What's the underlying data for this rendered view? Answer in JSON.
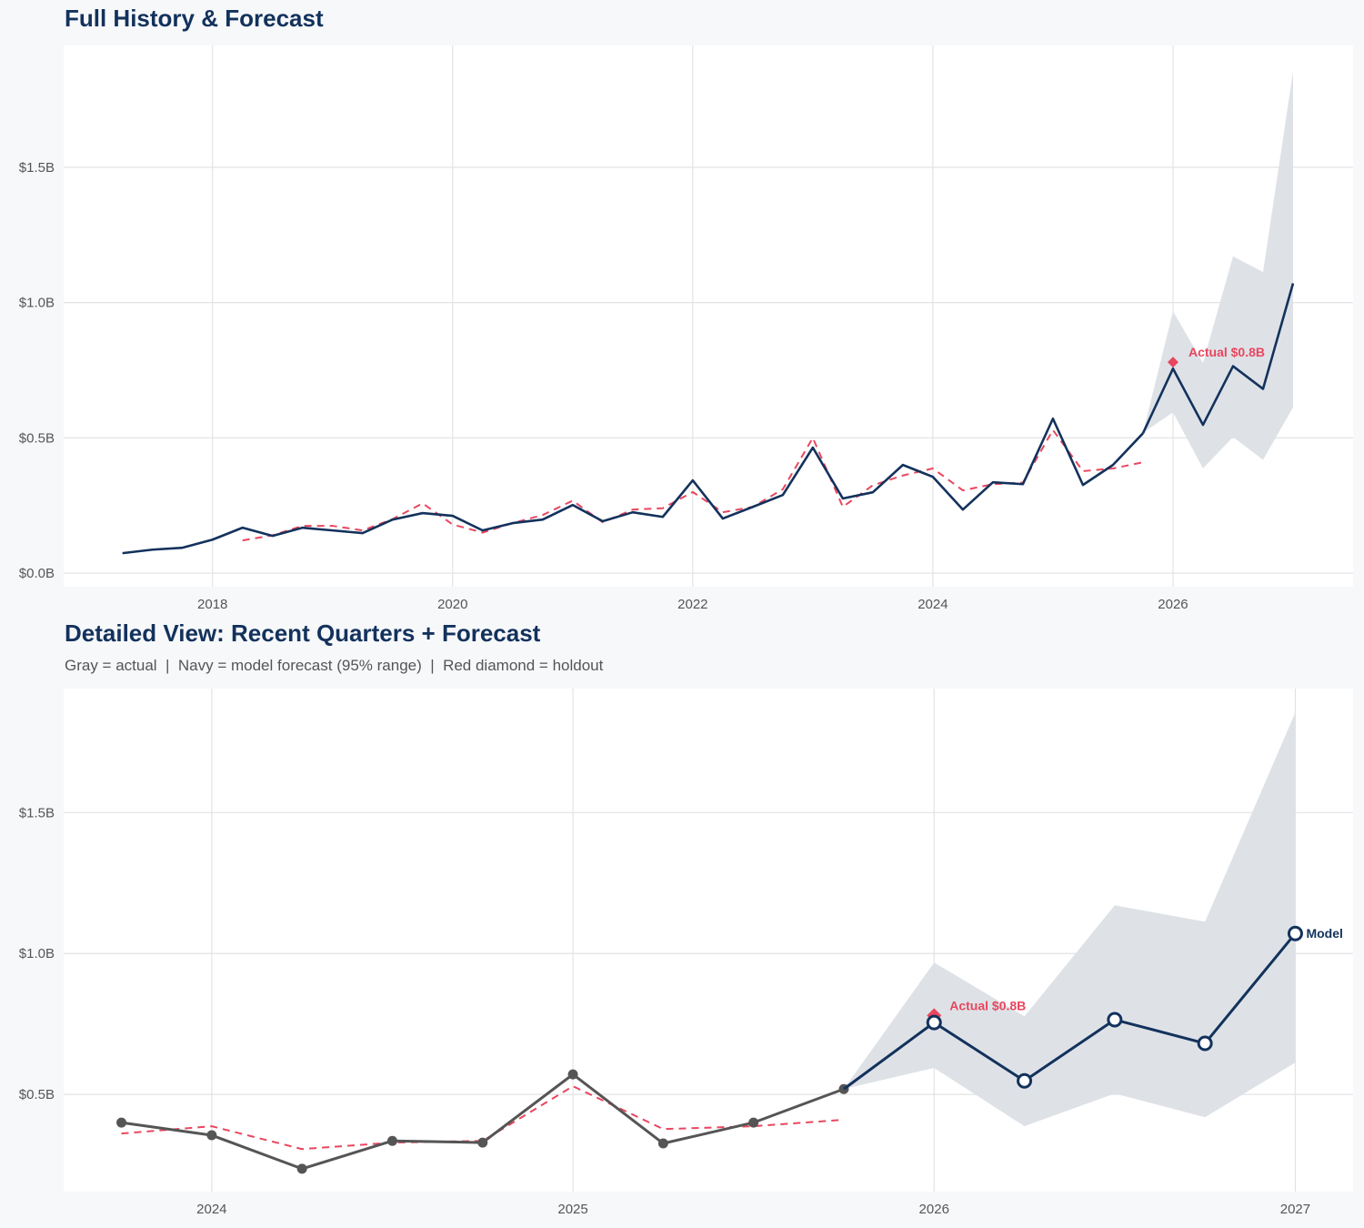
{
  "colors": {
    "background": "#f7f8fa",
    "panel": "#ffffff",
    "grid": "#e3e3e5",
    "navy": "#13325c",
    "red": "#e8475f",
    "gray": "#555555",
    "band": "#dce0e6"
  },
  "chart_data": [
    {
      "type": "line",
      "title": "Full History & Forecast",
      "xlim": [
        2016.76,
        2027.5
      ],
      "ylim": [
        -0.05,
        1.95
      ],
      "grid": true,
      "x_ticks": [
        2018,
        2020,
        2022,
        2024,
        2026
      ],
      "x_tick_labels": [
        "2018",
        "2020",
        "2022",
        "2024",
        "2026"
      ],
      "y_ticks": [
        0,
        0.5,
        1.0,
        1.5
      ],
      "y_tick_labels": [
        "$0.0B",
        "$0.5B",
        "$1.0B",
        "$1.5B"
      ],
      "series": [
        {
          "role": "actual",
          "color": "#13325c",
          "x": [
            2017.25,
            2017.5,
            2017.75,
            2018,
            2018.25,
            2018.5,
            2018.75,
            2019,
            2019.25,
            2019.5,
            2019.75,
            2020,
            2020.25,
            2020.5,
            2020.75,
            2021,
            2021.25,
            2021.5,
            2021.75,
            2022,
            2022.25,
            2022.5,
            2022.75,
            2023,
            2023.25,
            2023.5,
            2023.75,
            2024,
            2024.25,
            2024.5,
            2024.75,
            2025,
            2025.25,
            2025.5,
            2025.75
          ],
          "y": [
            0.074,
            0.087,
            0.094,
            0.124,
            0.168,
            0.138,
            0.168,
            0.158,
            0.148,
            0.198,
            0.222,
            0.212,
            0.158,
            0.185,
            0.198,
            0.252,
            0.192,
            0.225,
            0.208,
            0.343,
            0.202,
            0.245,
            0.289,
            0.464,
            0.276,
            0.299,
            0.4,
            0.356,
            0.235,
            0.336,
            0.329,
            0.571,
            0.326,
            0.4,
            0.517
          ]
        },
        {
          "role": "forecast",
          "color": "#13325c",
          "x": [
            2025.75,
            2026,
            2026.25,
            2026.5,
            2026.75,
            2027
          ],
          "y": [
            0.517,
            0.756,
            0.548,
            0.765,
            0.681,
            1.071
          ]
        },
        {
          "role": "fitted",
          "color": "#e8475f",
          "dashed": true,
          "x": [
            2018.25,
            2018.5,
            2018.75,
            2019,
            2019.25,
            2019.5,
            2019.75,
            2020,
            2020.25,
            2020.5,
            2020.75,
            2021,
            2021.25,
            2021.5,
            2021.75,
            2022,
            2022.25,
            2022.5,
            2022.75,
            2023,
            2023.25,
            2023.5,
            2023.75,
            2024,
            2024.25,
            2024.5,
            2024.75,
            2025,
            2025.25,
            2025.5,
            2025.75
          ],
          "y": [
            0.121,
            0.14,
            0.175,
            0.175,
            0.158,
            0.2,
            0.258,
            0.18,
            0.15,
            0.185,
            0.215,
            0.268,
            0.188,
            0.235,
            0.24,
            0.3,
            0.225,
            0.245,
            0.31,
            0.5,
            0.245,
            0.325,
            0.361,
            0.387,
            0.306,
            0.329,
            0.335,
            0.529,
            0.377,
            0.387,
            0.41
          ]
        }
      ],
      "band": {
        "x": [
          2025.75,
          2026,
          2026.25,
          2026.5,
          2026.75,
          2027
        ],
        "lower": [
          0.519,
          0.594,
          0.387,
          0.503,
          0.419,
          0.613
        ],
        "upper": [
          0.519,
          0.968,
          0.777,
          1.171,
          1.113,
          1.855
        ]
      },
      "holdout": {
        "x": 2026,
        "y": 0.78,
        "label": "Actual $0.8B"
      }
    },
    {
      "type": "line",
      "title": "Detailed View: Recent Quarters + Forecast",
      "subtitle": "Gray = actual  |  Navy = model forecast (95% range)  |  Red diamond = holdout",
      "xlim": [
        2023.59,
        2027.16
      ],
      "ylim": [
        0.155,
        1.94
      ],
      "grid": true,
      "x_ticks": [
        2024,
        2025,
        2026,
        2027
      ],
      "x_tick_labels": [
        "2024",
        "2025",
        "2026",
        "2027"
      ],
      "y_ticks": [
        0.5,
        1.0,
        1.5
      ],
      "y_tick_labels": [
        "$0.5B",
        "$1.0B",
        "$1.5B"
      ],
      "series": [
        {
          "role": "actual",
          "color": "#555555",
          "markers": "filled",
          "x": [
            2023.75,
            2024,
            2024.25,
            2024.5,
            2024.75,
            2025,
            2025.25,
            2025.5,
            2025.75
          ],
          "y": [
            0.4,
            0.355,
            0.236,
            0.335,
            0.329,
            0.571,
            0.326,
            0.4,
            0.519
          ]
        },
        {
          "role": "forecast",
          "color": "#13325c",
          "markers": "open",
          "end_label": "Model",
          "x": [
            2025.75,
            2026,
            2026.25,
            2026.5,
            2026.75,
            2027
          ],
          "y": [
            0.519,
            0.755,
            0.548,
            0.765,
            0.681,
            1.071
          ]
        },
        {
          "role": "fitted",
          "color": "#e8475f",
          "dashed": true,
          "x": [
            2023.75,
            2024,
            2024.25,
            2024.5,
            2024.75,
            2025,
            2025.25,
            2025.5,
            2025.75
          ],
          "y": [
            0.361,
            0.387,
            0.306,
            0.329,
            0.335,
            0.529,
            0.377,
            0.387,
            0.41
          ]
        }
      ],
      "band": {
        "x": [
          2025.75,
          2026,
          2026.25,
          2026.5,
          2026.75,
          2027
        ],
        "lower": [
          0.519,
          0.594,
          0.387,
          0.503,
          0.419,
          0.613
        ],
        "upper": [
          0.519,
          0.968,
          0.777,
          1.171,
          1.113,
          1.855
        ]
      },
      "holdout": {
        "x": 2026,
        "y": 0.78,
        "label": "Actual $0.8B"
      }
    }
  ]
}
